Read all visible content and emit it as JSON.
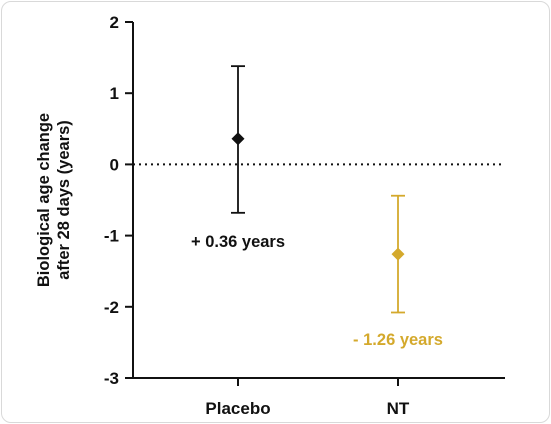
{
  "chart_data": {
    "type": "scatter",
    "categories": [
      "Placebo",
      "NT"
    ],
    "ylabel_line1": "Biological age change",
    "ylabel_line2": "after 28 days (years)",
    "ylim": [
      -3,
      2
    ],
    "yticks": [
      "2",
      "1",
      "0",
      "-1",
      "-2",
      "-3"
    ],
    "ytick_values": [
      2,
      1,
      0,
      -1,
      -2,
      -3
    ],
    "reference_line": 0,
    "series": [
      {
        "category": "Placebo",
        "mean": 0.36,
        "upper": 1.38,
        "lower": -0.68,
        "color": "#111111",
        "annotation": "+ 0.36 years"
      },
      {
        "category": "NT",
        "mean": -1.26,
        "upper": -0.44,
        "lower": -2.08,
        "color": "#d4a92c",
        "annotation": "- 1.26 years"
      }
    ]
  }
}
